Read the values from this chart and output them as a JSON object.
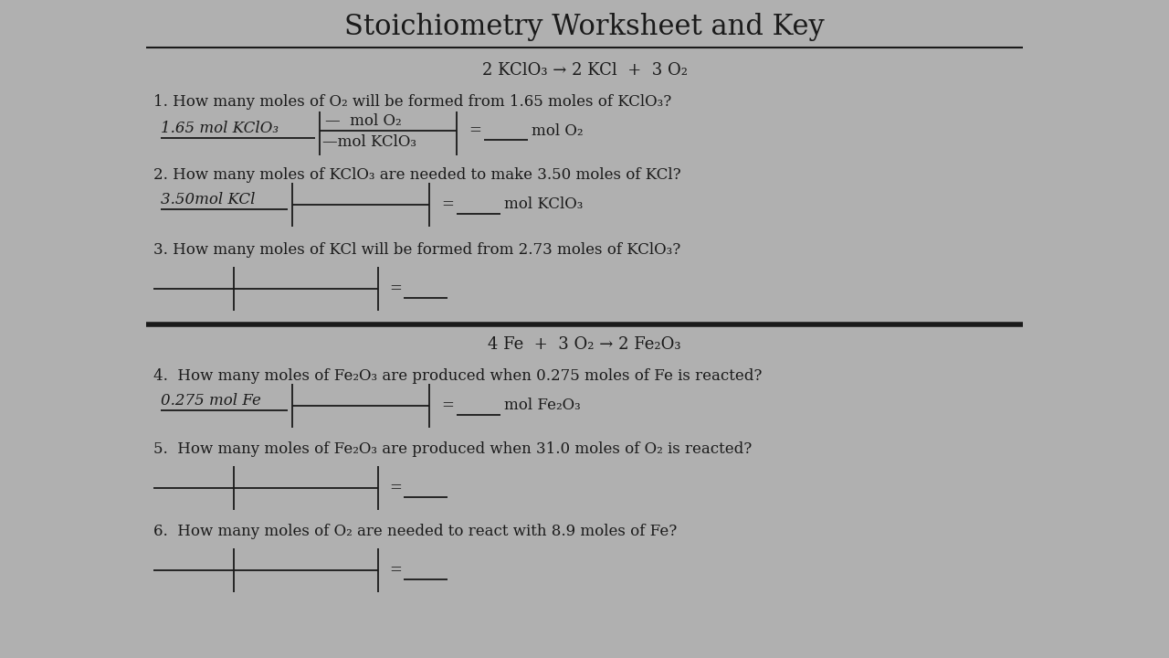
{
  "title": "Stoichiometry Worksheet and Key",
  "bg_color": "#ffffff",
  "text_color": "#1a1a1a",
  "title_fontsize": 22,
  "body_fontsize": 12,
  "equation1": "2 KClO₃ → 2 KCl  +  3 O₂",
  "equation2": "4 Fe  +  3 O₂ → 2 Fe₂O₃",
  "q1": "1. How many moles of O₂ will be formed from 1.65 moles of KClO₃?",
  "q2": "2. How many moles of KClO₃ are needed to make 3.50 moles of KCl?",
  "q3": "3. How many moles of KCl will be formed from 2.73 moles of KClO₃?",
  "q4": "4.  How many moles of Fe₂O₃ are produced when 0.275 moles of Fe is reacted?",
  "q5": "5.  How many moles of Fe₂O₃ are produced when 31.0 moles of O₂ is reacted?",
  "q6": "6.  How many moles of O₂ are needed to react with 8.9 moles of Fe?",
  "label_q1_left": "1.65 mol KClO₃",
  "label_q1_top": "—  mol O₂",
  "label_q1_bot": "—mol KClO₃",
  "label_q1_ans": "mol O₂",
  "label_q2_left": "3.50mol KCl",
  "label_q2_ans": "mol KClO₃",
  "label_q4_left": "0.275 mol Fe",
  "label_q4_ans": "mol Fe₂O₃"
}
